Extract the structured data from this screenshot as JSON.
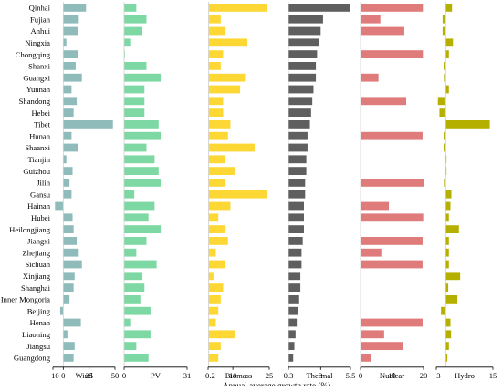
{
  "chart_data": {
    "type": "bar",
    "orientation": "horizontal",
    "xlabel": "Annual average growth rate (%)",
    "grid": false,
    "categories": [
      "Qinhai",
      "Fujian",
      "Anhui",
      "Ningxia",
      "Chongqing",
      "Shanxi",
      "Guangxi",
      "Yunnan",
      "Shandong",
      "Hebei",
      "Tibet",
      "Hunan",
      "Shaanxi",
      "Tianjin",
      "Guizhou",
      "Jilin",
      "Gansu",
      "Hainan",
      "Hubei",
      "Heilongjiang",
      "Jiangxi",
      "Zhejiang",
      "Sichuan",
      "Xinjiang",
      "Shanghai",
      "Inner Mongoria",
      "Beijing",
      "Henan",
      "Liaoning",
      "Jiangsu",
      "Guangdong"
    ],
    "panels": [
      {
        "name": "Wind",
        "color": "#8fbcbb",
        "xlim": [
          -10,
          50
        ],
        "ticks": [
          {
            "v": -10,
            "l": "−10"
          },
          {
            "v": 0,
            "l": "0"
          },
          {
            "v": 25,
            "l": "25"
          },
          {
            "v": 50,
            "l": "50"
          }
        ],
        "values": [
          22,
          15,
          14,
          3,
          14,
          12,
          18,
          8,
          13,
          10,
          48,
          8,
          14,
          3,
          9,
          6,
          8,
          -8,
          9,
          10,
          13,
          15,
          18,
          11,
          10,
          6,
          -3,
          17,
          4,
          11,
          10
        ]
      },
      {
        "name": "PV",
        "color": "#7dd8a3",
        "xlim": [
          0,
          31
        ],
        "ticks": [
          {
            "v": 0,
            "l": "0"
          },
          {
            "v": 31,
            "l": "31"
          }
        ],
        "values": [
          6,
          11,
          9,
          3,
          0,
          11,
          18,
          10,
          10,
          10,
          17,
          18,
          11,
          15,
          17,
          18,
          5,
          15,
          12,
          18,
          11,
          6,
          16,
          9,
          10,
          8,
          13,
          3,
          13,
          6,
          12
        ]
      },
      {
        "name": "Biomass",
        "color": "#fdd835",
        "xlim": [
          -0.2,
          25
        ],
        "ticks": [
          {
            "v": -0.2,
            "l": "−0.2"
          },
          {
            "v": 10,
            "l": "10"
          },
          {
            "v": 25,
            "l": "25"
          }
        ],
        "values": [
          24,
          5,
          7,
          16,
          6,
          5,
          15,
          13,
          6,
          6,
          9,
          8,
          19,
          7,
          11,
          7,
          24,
          9,
          4,
          7,
          8,
          3,
          7,
          2,
          6,
          5,
          4,
          3,
          11,
          5,
          4
        ]
      },
      {
        "name": "Thermal",
        "color": "#5f5f5f",
        "xlim": [
          0.3,
          5.5
        ],
        "ticks": [
          {
            "v": 0.3,
            "l": "0.3"
          },
          {
            "v": 3,
            "l": "3"
          },
          {
            "v": 5.5,
            "l": "5.5"
          }
        ],
        "values": [
          5.5,
          3.2,
          3.0,
          2.9,
          2.7,
          2.6,
          2.6,
          2.4,
          2.3,
          2.2,
          2.1,
          1.9,
          1.9,
          1.8,
          1.8,
          1.7,
          1.7,
          1.6,
          1.6,
          1.6,
          1.5,
          1.4,
          1.4,
          1.3,
          1.3,
          1.2,
          1.1,
          1.0,
          0.9,
          0.8,
          0.7
        ]
      },
      {
        "name": "Nuclear",
        "color": "#e07b7b",
        "xlim": [
          0,
          20
        ],
        "ticks": [
          {
            "v": 0,
            "l": "0"
          },
          {
            "v": 10,
            "l": "10"
          },
          {
            "v": 20,
            "l": "20"
          }
        ],
        "values": [
          19.8,
          6.3,
          13.9,
          null,
          19.8,
          null,
          5.7,
          null,
          14.5,
          null,
          null,
          19.7,
          null,
          null,
          null,
          20.2,
          null,
          9.0,
          19.9,
          null,
          19.7,
          6.6,
          19.7,
          null,
          null,
          null,
          null,
          19.7,
          7.5,
          13.6,
          3.2
        ]
      },
      {
        "name": "Hydro",
        "color": "#b5b000",
        "xlim": [
          -3,
          15
        ],
        "ticks": [
          {
            "v": -3,
            "l": "−3"
          },
          {
            "v": 15,
            "l": "15"
          }
        ],
        "values": [
          2.0,
          -1.0,
          -1.0,
          2.3,
          1.0,
          -0.5,
          -0.3,
          1.0,
          -2.5,
          -2.0,
          14.0,
          -0.5,
          -0.4,
          0,
          0,
          -0.3,
          1.8,
          1.5,
          1.0,
          4.2,
          1.0,
          1.0,
          1.0,
          4.6,
          0.8,
          3.7,
          -1.5,
          1.5,
          1.7,
          1.0,
          0.5
        ]
      }
    ]
  }
}
